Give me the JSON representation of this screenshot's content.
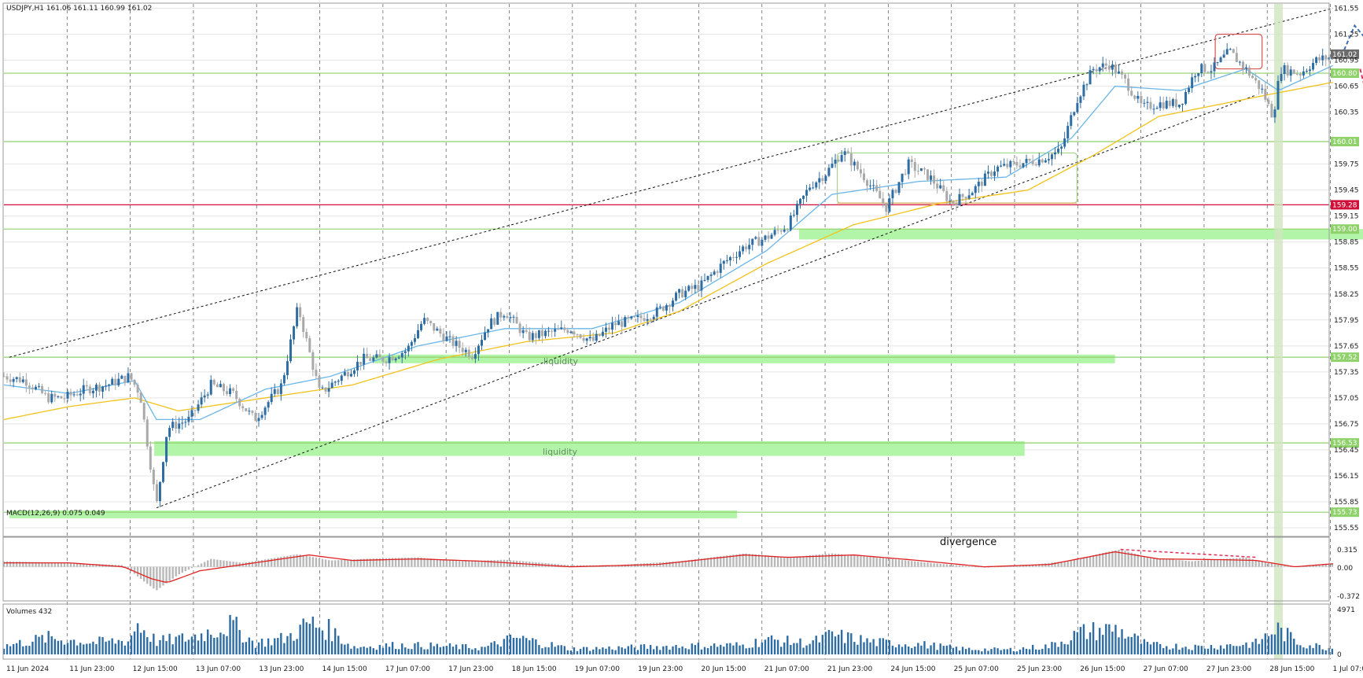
{
  "header": {
    "symbol_info": "USDJPY,H1  161.06 161.11 160.99 161.02"
  },
  "macd": {
    "label": "MACD(12,26,9) 0.075 0.049",
    "ticks": [
      "0.315",
      "0.00",
      "-0.372"
    ]
  },
  "volumes": {
    "label": "Volumes 432",
    "ticks": [
      "4971",
      "0"
    ]
  },
  "annotations": {
    "liquidity_1": "liquidity",
    "liquidity_2": "liquidity",
    "divergence": "divergence"
  },
  "colors": {
    "bull": "#2e6da4",
    "bear": "#a9a9a9",
    "level_green": "#8fd16a",
    "level_red": "#d0103a",
    "zone_green": "#b2f5a8",
    "ema_fast": "#6ab6e8",
    "ema_slow": "#f2c21b",
    "macd_signal": "#e02020",
    "up_projection": "#3d6fb0",
    "down_projection": "#e0305a"
  },
  "chart_data": {
    "type": "candlestick",
    "symbol": "USDJPY",
    "timeframe": "H1",
    "ylim": [
      155.45,
      161.6
    ],
    "y_ticks": [
      "161.55",
      "161.25",
      "160.95",
      "160.65",
      "160.35",
      "159.75",
      "159.45",
      "159.15",
      "158.85",
      "158.55",
      "158.25",
      "157.95",
      "157.65",
      "157.35",
      "157.05",
      "156.75",
      "156.45",
      "156.15",
      "155.85",
      "155.55"
    ],
    "x_tick_labels": [
      "11 Jun 2024",
      "11 Jun 23:00",
      "12 Jun 15:00",
      "13 Jun 07:00",
      "13 Jun 23:00",
      "14 Jun 15:00",
      "17 Jun 07:00",
      "17 Jun 23:00",
      "18 Jun 15:00",
      "19 Jun 07:00",
      "19 Jun 23:00",
      "20 Jun 15:00",
      "21 Jun 07:00",
      "21 Jun 23:00",
      "24 Jun 15:00",
      "25 Jun 07:00",
      "25 Jun 23:00",
      "26 Jun 15:00",
      "27 Jun 07:00",
      "27 Jun 23:00",
      "28 Jun 15:00",
      "1 Jul 07:00"
    ],
    "price_path": [
      [
        0,
        157.3
      ],
      [
        20,
        157.25
      ],
      [
        40,
        157.05
      ],
      [
        55,
        157.05
      ],
      [
        75,
        157.15
      ],
      [
        95,
        157.2
      ],
      [
        115,
        157.3
      ],
      [
        125,
        157.1
      ],
      [
        132,
        156.5
      ],
      [
        140,
        155.8
      ],
      [
        150,
        156.7
      ],
      [
        170,
        156.8
      ],
      [
        190,
        157.2
      ],
      [
        210,
        157.1
      ],
      [
        230,
        156.8
      ],
      [
        255,
        157.2
      ],
      [
        270,
        158.1
      ],
      [
        290,
        157.1
      ],
      [
        310,
        157.3
      ],
      [
        330,
        157.5
      ],
      [
        350,
        157.5
      ],
      [
        370,
        157.6
      ],
      [
        385,
        157.95
      ],
      [
        410,
        157.7
      ],
      [
        430,
        157.55
      ],
      [
        445,
        157.9
      ],
      [
        460,
        158.05
      ],
      [
        480,
        157.75
      ],
      [
        500,
        157.8
      ],
      [
        520,
        157.85
      ],
      [
        540,
        157.7
      ],
      [
        560,
        157.9
      ],
      [
        580,
        157.95
      ],
      [
        600,
        158.05
      ],
      [
        620,
        158.25
      ],
      [
        640,
        158.35
      ],
      [
        660,
        158.6
      ],
      [
        680,
        158.8
      ],
      [
        700,
        158.9
      ],
      [
        720,
        159.05
      ],
      [
        740,
        159.5
      ],
      [
        755,
        159.65
      ],
      [
        770,
        159.9
      ],
      [
        790,
        159.6
      ],
      [
        810,
        159.25
      ],
      [
        830,
        159.75
      ],
      [
        850,
        159.6
      ],
      [
        870,
        159.3
      ],
      [
        890,
        159.45
      ],
      [
        910,
        159.7
      ],
      [
        930,
        159.75
      ],
      [
        950,
        159.8
      ],
      [
        970,
        159.9
      ],
      [
        985,
        160.5
      ],
      [
        1000,
        160.85
      ],
      [
        1015,
        160.9
      ],
      [
        1030,
        160.7
      ],
      [
        1045,
        160.4
      ],
      [
        1060,
        160.45
      ],
      [
        1080,
        160.45
      ],
      [
        1095,
        160.85
      ],
      [
        1110,
        160.85
      ],
      [
        1125,
        161.05
      ],
      [
        1140,
        160.85
      ],
      [
        1155,
        160.6
      ],
      [
        1165,
        160.3
      ],
      [
        1172,
        160.85
      ],
      [
        1190,
        160.8
      ],
      [
        1205,
        160.95
      ],
      [
        1222,
        161.0
      ]
    ],
    "ema_fast_path": [
      [
        0,
        157.2
      ],
      [
        60,
        157.1
      ],
      [
        120,
        157.25
      ],
      [
        140,
        156.8
      ],
      [
        180,
        156.8
      ],
      [
        240,
        157.15
      ],
      [
        300,
        157.3
      ],
      [
        380,
        157.65
      ],
      [
        460,
        157.85
      ],
      [
        540,
        157.85
      ],
      [
        620,
        158.15
      ],
      [
        700,
        158.75
      ],
      [
        760,
        159.4
      ],
      [
        840,
        159.55
      ],
      [
        920,
        159.6
      ],
      [
        980,
        160.05
      ],
      [
        1020,
        160.65
      ],
      [
        1080,
        160.6
      ],
      [
        1140,
        160.85
      ],
      [
        1170,
        160.6
      ],
      [
        1222,
        160.9
      ]
    ],
    "ema_slow_path": [
      [
        0,
        156.8
      ],
      [
        60,
        156.95
      ],
      [
        120,
        157.05
      ],
      [
        160,
        156.9
      ],
      [
        240,
        157.05
      ],
      [
        320,
        157.2
      ],
      [
        400,
        157.5
      ],
      [
        480,
        157.7
      ],
      [
        560,
        157.8
      ],
      [
        620,
        158.05
      ],
      [
        700,
        158.6
      ],
      [
        780,
        159.05
      ],
      [
        860,
        159.3
      ],
      [
        940,
        159.45
      ],
      [
        1000,
        159.85
      ],
      [
        1060,
        160.3
      ],
      [
        1120,
        160.45
      ],
      [
        1160,
        160.55
      ],
      [
        1222,
        160.7
      ]
    ],
    "levels": [
      {
        "price": 160.8,
        "label": "160.80",
        "kind": "support-resistance"
      },
      {
        "price": 160.01,
        "label": "160.01",
        "kind": "support-resistance"
      },
      {
        "price": 159.28,
        "label": "159.28",
        "kind": "key-level"
      },
      {
        "price": 159.0,
        "label": "159.00",
        "kind": "support-resistance"
      },
      {
        "price": 157.52,
        "label": "157.52",
        "kind": "support-resistance"
      },
      {
        "price": 156.53,
        "label": "156.53",
        "kind": "support-resistance"
      },
      {
        "price": 155.73,
        "label": "155.73",
        "kind": "support-resistance"
      }
    ],
    "current_price": {
      "price": 161.02,
      "label": "161.02"
    },
    "zones": [
      {
        "from_x": 730,
        "to_x": 1280,
        "low": 158.88,
        "high": 159.0,
        "label_key": ""
      },
      {
        "from_x": 340,
        "to_x": 1020,
        "low": 157.45,
        "high": 157.55,
        "label_key": "liquidity_1"
      },
      {
        "from_x": 138,
        "to_x": 937,
        "low": 156.38,
        "high": 156.55,
        "label_key": "liquidity_2"
      },
      {
        "from_x": 5,
        "to_x": 673,
        "low": 155.66,
        "high": 155.75,
        "label_key": ""
      }
    ],
    "channel": {
      "upper": [
        [
          5,
          157.52
        ],
        [
          1220,
          161.55
        ]
      ],
      "lower": [
        [
          140,
          155.78
        ],
        [
          1150,
          160.55
        ]
      ]
    },
    "consolidation_box": {
      "from_x": 765,
      "to_x": 985,
      "low": 159.3,
      "high": 159.88
    },
    "top_box": {
      "from_x": 1112,
      "to_x": 1155,
      "low": 160.85,
      "high": 161.25
    },
    "projection_up": [
      [
        1228,
        161.0
      ],
      [
        1240,
        161.35
      ],
      [
        1250,
        161.2
      ],
      [
        1255,
        161.55
      ]
    ],
    "projection_down": [
      [
        1245,
        160.85
      ],
      [
        1252,
        160.5
      ],
      [
        1265,
        160.65
      ],
      [
        1280,
        160.05
      ]
    ],
    "macd_ylim": [
      -0.372,
      0.315
    ],
    "macd_hist_path": [
      [
        0,
        0.07
      ],
      [
        60,
        0.05
      ],
      [
        110,
        0.02
      ],
      [
        130,
        -0.2
      ],
      [
        140,
        -0.3
      ],
      [
        160,
        -0.1
      ],
      [
        190,
        0.1
      ],
      [
        220,
        0.05
      ],
      [
        270,
        0.16
      ],
      [
        300,
        0.08
      ],
      [
        330,
        0.1
      ],
      [
        380,
        0.12
      ],
      [
        420,
        0.07
      ],
      [
        460,
        0.09
      ],
      [
        520,
        0.02
      ],
      [
        560,
        0.02
      ],
      [
        620,
        0.07
      ],
      [
        680,
        0.17
      ],
      [
        720,
        0.12
      ],
      [
        760,
        0.17
      ],
      [
        800,
        0.12
      ],
      [
        850,
        0.05
      ],
      [
        900,
        -0.01
      ],
      [
        940,
        0.02
      ],
      [
        980,
        0.08
      ],
      [
        1010,
        0.18
      ],
      [
        1025,
        0.22
      ],
      [
        1050,
        0.12
      ],
      [
        1090,
        0.07
      ],
      [
        1140,
        0.12
      ],
      [
        1160,
        0.05
      ],
      [
        1180,
        0.0
      ],
      [
        1222,
        0.05
      ]
    ],
    "macd_signal_path": [
      [
        0,
        0.05
      ],
      [
        60,
        0.05
      ],
      [
        110,
        0.0
      ],
      [
        135,
        -0.15
      ],
      [
        150,
        -0.2
      ],
      [
        180,
        -0.05
      ],
      [
        230,
        0.05
      ],
      [
        280,
        0.15
      ],
      [
        320,
        0.08
      ],
      [
        380,
        0.1
      ],
      [
        440,
        0.07
      ],
      [
        520,
        0.0
      ],
      [
        600,
        0.03
      ],
      [
        680,
        0.15
      ],
      [
        720,
        0.12
      ],
      [
        780,
        0.15
      ],
      [
        840,
        0.08
      ],
      [
        900,
        0.0
      ],
      [
        960,
        0.03
      ],
      [
        1020,
        0.19
      ],
      [
        1060,
        0.1
      ],
      [
        1120,
        0.09
      ],
      [
        1150,
        0.08
      ],
      [
        1185,
        0.0
      ],
      [
        1222,
        0.04
      ]
    ],
    "divergence_line": [
      [
        1025,
        0.22
      ],
      [
        1150,
        0.12
      ]
    ],
    "volume_max": 4971,
    "volume_path": [
      [
        0,
        900
      ],
      [
        40,
        1800
      ],
      [
        80,
        1300
      ],
      [
        115,
        1500
      ],
      [
        122,
        3400
      ],
      [
        140,
        1400
      ],
      [
        170,
        1800
      ],
      [
        210,
        3200
      ],
      [
        230,
        1200
      ],
      [
        260,
        1800
      ],
      [
        280,
        3400
      ],
      [
        300,
        2600
      ],
      [
        320,
        800
      ],
      [
        360,
        1000
      ],
      [
        400,
        900
      ],
      [
        440,
        700
      ],
      [
        470,
        1800
      ],
      [
        520,
        600
      ],
      [
        560,
        700
      ],
      [
        620,
        900
      ],
      [
        680,
        1000
      ],
      [
        700,
        1600
      ],
      [
        740,
        1200
      ],
      [
        760,
        2100
      ],
      [
        800,
        1300
      ],
      [
        840,
        1100
      ],
      [
        880,
        600
      ],
      [
        920,
        500
      ],
      [
        960,
        900
      ],
      [
        990,
        2400
      ],
      [
        1020,
        2800
      ],
      [
        1050,
        1000
      ],
      [
        1100,
        800
      ],
      [
        1150,
        1200
      ],
      [
        1168,
        2800
      ],
      [
        1190,
        1200
      ],
      [
        1222,
        600
      ]
    ],
    "highlight_band": {
      "from_x": 1166,
      "to_x": 1174
    }
  }
}
